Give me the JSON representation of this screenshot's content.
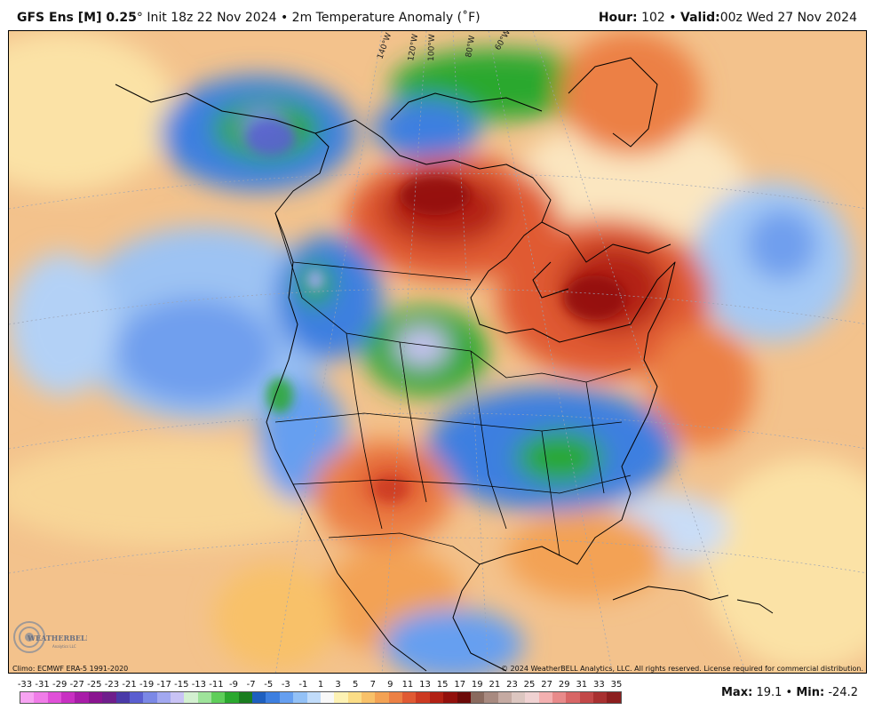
{
  "header": {
    "model": "GFS Ens [M] 0.25",
    "deg": "°",
    "init": "Init 18z 22 Nov 2024",
    "bullet": "•",
    "field": "2m Temperature Anomaly (˚F)",
    "hour_label": "Hour:",
    "hour_value": "102",
    "valid_label": "Valid:",
    "valid_value": "00z Wed 27 Nov 2024"
  },
  "map": {
    "lon_labels": [
      "140°W",
      "120°W",
      "100°W",
      "80°W",
      "60°W"
    ],
    "climo_note": "Climo: ECMWF ERA-5 1991-2020",
    "copyright": "© 2024 WeatherBELL Analytics, LLC. All rights reserved. License required for commercial distribution.",
    "logo_text": "WEATHERBELL",
    "logo_sub": "Analytics LLC"
  },
  "colorbar": {
    "ticks": [
      "-33",
      "-31",
      "-29",
      "-27",
      "-25",
      "-23",
      "-21",
      "-19",
      "-17",
      "-15",
      "-13",
      "-11",
      "-9",
      "-7",
      "-5",
      "-3",
      "-1",
      "1",
      "3",
      "5",
      "7",
      "9",
      "11",
      "13",
      "15",
      "17",
      "19",
      "21",
      "23",
      "25",
      "27",
      "29",
      "31",
      "33",
      "35"
    ],
    "colors": [
      "#f7a3f2",
      "#f07ce8",
      "#e050d8",
      "#c830c2",
      "#a81ca8",
      "#8a1490",
      "#6f1e8c",
      "#4a3aa8",
      "#5a5ed0",
      "#7b88e6",
      "#a2a8f0",
      "#c9c3f5",
      "#d3f0d0",
      "#9ee39a",
      "#5fce5a",
      "#2aa82e",
      "#1a7d1f",
      "#1e5fbf",
      "#3d7fe0",
      "#669ff0",
      "#93c1f6",
      "#c1dcfa",
      "#f8f8f8",
      "#fdf2b4",
      "#fbdd86",
      "#f8c169",
      "#f3a254",
      "#ec8044",
      "#e05a33",
      "#cc3a22",
      "#b22114",
      "#92100c",
      "#6c0a08",
      "#8a6a5e",
      "#a88a80",
      "#c5aaa2",
      "#dcc6c0",
      "#f0d2d2",
      "#f3b0b0",
      "#e88a8a",
      "#d86666",
      "#c24848",
      "#a83030",
      "#8c1e1e"
    ]
  },
  "stats": {
    "max_label": "Max",
    "max_value": "19.1",
    "min_label": "Min",
    "min_value": "-24.2",
    "colon": ":"
  }
}
